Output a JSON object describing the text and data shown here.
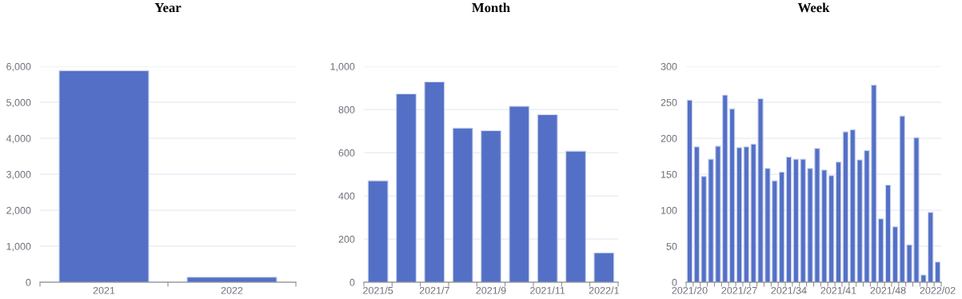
{
  "chart_data": [
    {
      "type": "bar",
      "title": "Year",
      "categories": [
        "2021",
        "2022"
      ],
      "values": [
        5880,
        140
      ],
      "color": "#5470c6",
      "ylim": [
        0,
        6000
      ],
      "yticks": [
        0,
        {
          "value": 1000,
          "label": "1,000"
        },
        {
          "value": 2000,
          "label": "2,000"
        },
        {
          "value": 3000,
          "label": "3,000"
        },
        {
          "value": 4000,
          "label": "4,000"
        },
        {
          "value": 5000,
          "label": "5,000"
        },
        {
          "value": 6000,
          "label": "6,000"
        }
      ],
      "grid": "y"
    },
    {
      "type": "bar",
      "title": "Month",
      "categories": [
        "2021/5",
        null,
        "2021/7",
        null,
        "2021/9",
        null,
        "2021/11",
        null,
        "2022/1"
      ],
      "values": [
        470,
        872,
        928,
        714,
        702,
        815,
        776,
        607,
        136
      ],
      "color": "#5470c6",
      "ylim": [
        0,
        1000
      ],
      "yticks": [
        0,
        200,
        400,
        600,
        800,
        {
          "value": 1000,
          "label": "1,000"
        }
      ],
      "grid": "y"
    },
    {
      "type": "bar",
      "title": "Week",
      "categories": [
        "2021/20",
        null,
        null,
        null,
        null,
        null,
        null,
        "2021/27",
        null,
        null,
        null,
        null,
        null,
        null,
        "2021/34",
        null,
        null,
        null,
        null,
        null,
        null,
        "2021/41",
        null,
        null,
        null,
        null,
        null,
        null,
        "2021/48",
        null,
        null,
        null,
        null,
        null,
        null,
        "2022/02"
      ],
      "values": [
        253,
        188,
        147,
        171,
        189,
        260,
        241,
        187,
        188,
        192,
        255,
        158,
        141,
        153,
        174,
        171,
        171,
        158,
        186,
        156,
        148,
        167,
        209,
        212,
        170,
        183,
        274,
        88,
        135,
        77,
        231,
        52,
        201,
        10,
        97,
        28
      ],
      "color": "#5470c6",
      "ylim": [
        0,
        300
      ],
      "yticks": [
        0,
        50,
        100,
        150,
        200,
        250,
        300
      ],
      "grid": "y"
    }
  ]
}
